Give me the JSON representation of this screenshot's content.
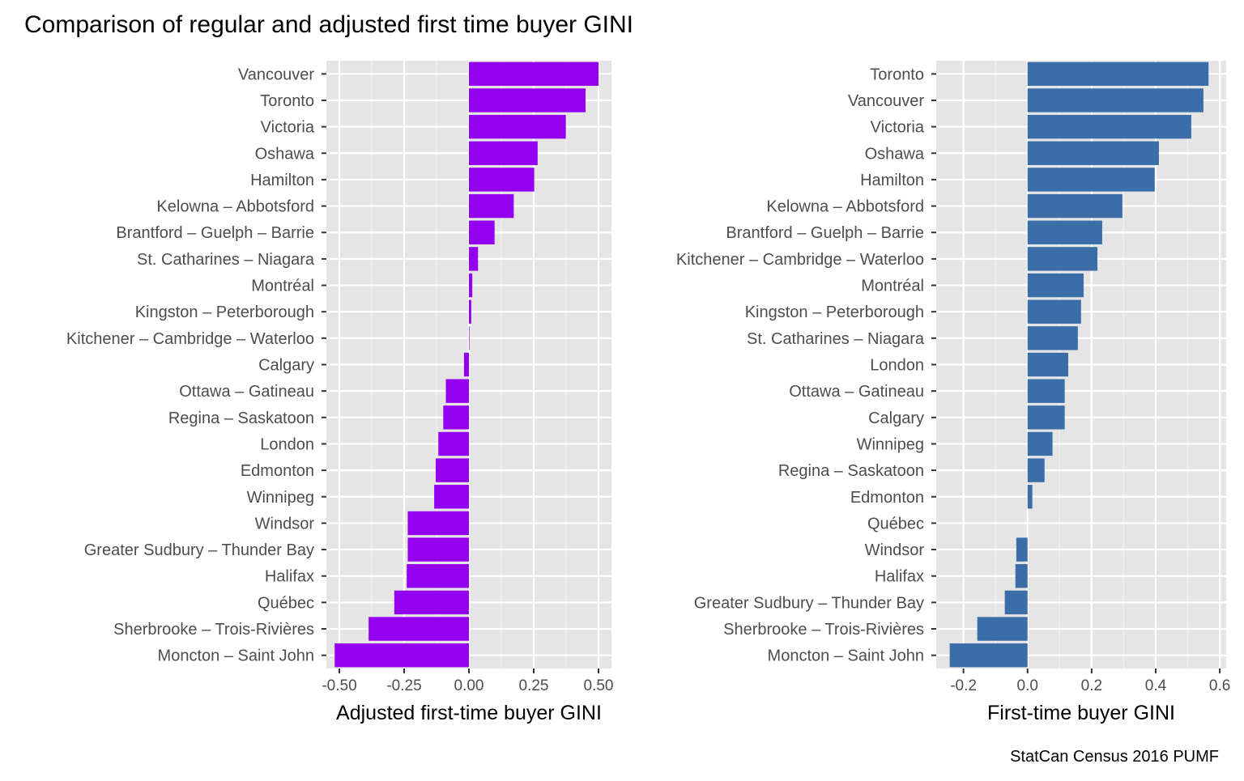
{
  "chart_data": {
    "type": "bar",
    "title": "Comparison of regular and adjusted first time buyer GINI",
    "caption": "StatCan Census 2016 PUMF",
    "panels": [
      {
        "xlabel": "Adjusted first-time buyer GINI",
        "color": "#9400F0",
        "xlim": [
          -0.55,
          0.55
        ],
        "ticks": [
          -0.5,
          -0.25,
          0,
          0.25,
          0.5
        ],
        "tick_labels": [
          "-0.50",
          "-0.25",
          "0.00",
          "0.25",
          "0.50"
        ],
        "categories": [
          "Vancouver",
          "Toronto",
          "Victoria",
          "Oshawa",
          "Hamilton",
          "Kelowna – Abbotsford",
          "Brantford – Guelph – Barrie",
          "St. Catharines – Niagara",
          "Montréal",
          "Kingston – Peterborough",
          "Kitchener – Cambridge – Waterloo",
          "Calgary",
          "Ottawa – Gatineau",
          "Regina – Saskatoon",
          "London",
          "Edmonton",
          "Winnipeg",
          "Windsor",
          "Greater Sudbury – Thunder Bay",
          "Halifax",
          "Québec",
          "Sherbrooke – Trois-Rivières",
          "Moncton – Saint John"
        ],
        "values": [
          0.5,
          0.45,
          0.374,
          0.265,
          0.252,
          0.173,
          0.099,
          0.035,
          0.013,
          0.009,
          0.002,
          -0.019,
          -0.089,
          -0.099,
          -0.118,
          -0.128,
          -0.134,
          -0.236,
          -0.236,
          -0.24,
          -0.288,
          -0.387,
          -0.518
        ]
      },
      {
        "xlabel": "First-time buyer GINI",
        "color": "#3B6EA8",
        "xlim": [
          -0.285,
          0.62
        ],
        "ticks": [
          -0.2,
          0,
          0.2,
          0.4,
          0.6
        ],
        "tick_labels": [
          "-0.2",
          "0.0",
          "0.2",
          "0.4",
          "0.6"
        ],
        "categories": [
          "Toronto",
          "Vancouver",
          "Victoria",
          "Oshawa",
          "Hamilton",
          "Kelowna – Abbotsford",
          "Brantford – Guelph – Barrie",
          "Kitchener – Cambridge – Waterloo",
          "Montréal",
          "Kingston – Peterborough",
          "St. Catharines – Niagara",
          "London",
          "Ottawa – Gatineau",
          "Calgary",
          "Winnipeg",
          "Regina – Saskatoon",
          "Edmonton",
          "Québec",
          "Windsor",
          "Halifax",
          "Greater Sudbury – Thunder Bay",
          "Sherbrooke – Trois-Rivières",
          "Moncton – Saint John"
        ],
        "values": [
          0.565,
          0.549,
          0.511,
          0.41,
          0.397,
          0.296,
          0.233,
          0.218,
          0.175,
          0.167,
          0.157,
          0.127,
          0.116,
          0.116,
          0.078,
          0.053,
          0.015,
          0.0,
          -0.035,
          -0.038,
          -0.071,
          -0.157,
          -0.243
        ]
      }
    ]
  }
}
